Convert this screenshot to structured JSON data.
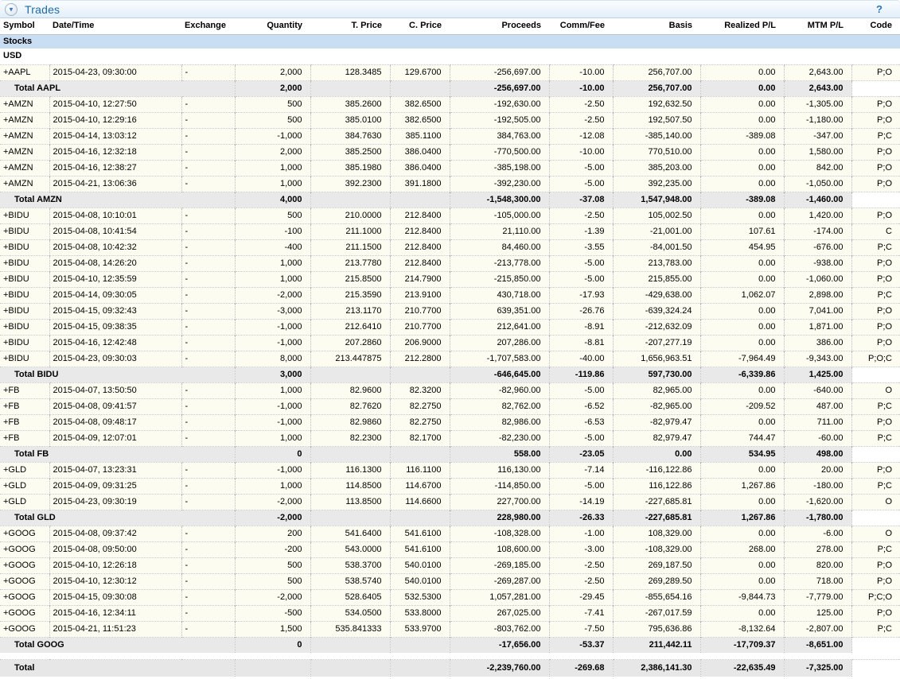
{
  "header": {
    "title": "Trades",
    "help_label": "?",
    "collapse_glyph": "▼"
  },
  "colors": {
    "title_text": "#1c6ca6",
    "section_bg": "#c9ddf3",
    "trade_row_bg": "#fdfcf0",
    "total_row_bg": "#e9e9e9"
  },
  "columns": [
    {
      "key": "symbol",
      "label": "Symbol",
      "align": "left"
    },
    {
      "key": "datetime",
      "label": "Date/Time",
      "align": "left"
    },
    {
      "key": "exchange",
      "label": "Exchange",
      "align": "left"
    },
    {
      "key": "quantity",
      "label": "Quantity",
      "align": "right"
    },
    {
      "key": "tprice",
      "label": "T. Price",
      "align": "right"
    },
    {
      "key": "cprice",
      "label": "C. Price",
      "align": "right"
    },
    {
      "key": "proceeds",
      "label": "Proceeds",
      "align": "right"
    },
    {
      "key": "comm",
      "label": "Comm/Fee",
      "align": "right"
    },
    {
      "key": "basis",
      "label": "Basis",
      "align": "right"
    },
    {
      "key": "realized",
      "label": "Realized P/L",
      "align": "right"
    },
    {
      "key": "mtm",
      "label": "MTM P/L",
      "align": "right"
    },
    {
      "key": "code",
      "label": "Code",
      "align": "right"
    }
  ],
  "rows": [
    {
      "type": "section",
      "label": "Stocks"
    },
    {
      "type": "currency",
      "label": "USD"
    },
    {
      "type": "trade",
      "cells": [
        "+AAPL",
        "2015-04-23, 09:30:00",
        "-",
        "2,000",
        "128.3485",
        "129.6700",
        "-256,697.00",
        "-10.00",
        "256,707.00",
        "0.00",
        "2,643.00",
        "P;O"
      ]
    },
    {
      "type": "total",
      "label": "Total AAPL",
      "quantity": "2,000",
      "proceeds": "-256,697.00",
      "comm": "-10.00",
      "basis": "256,707.00",
      "realized": "0.00",
      "mtm": "2,643.00"
    },
    {
      "type": "trade",
      "cells": [
        "+AMZN",
        "2015-04-10, 12:27:50",
        "-",
        "500",
        "385.2600",
        "382.6500",
        "-192,630.00",
        "-2.50",
        "192,632.50",
        "0.00",
        "-1,305.00",
        "P;O"
      ]
    },
    {
      "type": "trade",
      "cells": [
        "+AMZN",
        "2015-04-10, 12:29:16",
        "-",
        "500",
        "385.0100",
        "382.6500",
        "-192,505.00",
        "-2.50",
        "192,507.50",
        "0.00",
        "-1,180.00",
        "P;O"
      ]
    },
    {
      "type": "trade",
      "cells": [
        "+AMZN",
        "2015-04-14, 13:03:12",
        "-",
        "-1,000",
        "384.7630",
        "385.1100",
        "384,763.00",
        "-12.08",
        "-385,140.00",
        "-389.08",
        "-347.00",
        "P;C"
      ]
    },
    {
      "type": "trade",
      "cells": [
        "+AMZN",
        "2015-04-16, 12:32:18",
        "-",
        "2,000",
        "385.2500",
        "386.0400",
        "-770,500.00",
        "-10.00",
        "770,510.00",
        "0.00",
        "1,580.00",
        "P;O"
      ]
    },
    {
      "type": "trade",
      "cells": [
        "+AMZN",
        "2015-04-16, 12:38:27",
        "-",
        "1,000",
        "385.1980",
        "386.0400",
        "-385,198.00",
        "-5.00",
        "385,203.00",
        "0.00",
        "842.00",
        "P;O"
      ]
    },
    {
      "type": "trade",
      "cells": [
        "+AMZN",
        "2015-04-21, 13:06:36",
        "-",
        "1,000",
        "392.2300",
        "391.1800",
        "-392,230.00",
        "-5.00",
        "392,235.00",
        "0.00",
        "-1,050.00",
        "P;O"
      ]
    },
    {
      "type": "total",
      "label": "Total AMZN",
      "quantity": "4,000",
      "proceeds": "-1,548,300.00",
      "comm": "-37.08",
      "basis": "1,547,948.00",
      "realized": "-389.08",
      "mtm": "-1,460.00"
    },
    {
      "type": "trade",
      "cells": [
        "+BIDU",
        "2015-04-08, 10:10:01",
        "-",
        "500",
        "210.0000",
        "212.8400",
        "-105,000.00",
        "-2.50",
        "105,002.50",
        "0.00",
        "1,420.00",
        "P;O"
      ]
    },
    {
      "type": "trade",
      "cells": [
        "+BIDU",
        "2015-04-08, 10:41:54",
        "-",
        "-100",
        "211.1000",
        "212.8400",
        "21,110.00",
        "-1.39",
        "-21,001.00",
        "107.61",
        "-174.00",
        "C"
      ]
    },
    {
      "type": "trade",
      "cells": [
        "+BIDU",
        "2015-04-08, 10:42:32",
        "-",
        "-400",
        "211.1500",
        "212.8400",
        "84,460.00",
        "-3.55",
        "-84,001.50",
        "454.95",
        "-676.00",
        "P;C"
      ]
    },
    {
      "type": "trade",
      "cells": [
        "+BIDU",
        "2015-04-08, 14:26:20",
        "-",
        "1,000",
        "213.7780",
        "212.8400",
        "-213,778.00",
        "-5.00",
        "213,783.00",
        "0.00",
        "-938.00",
        "P;O"
      ]
    },
    {
      "type": "trade",
      "cells": [
        "+BIDU",
        "2015-04-10, 12:35:59",
        "-",
        "1,000",
        "215.8500",
        "214.7900",
        "-215,850.00",
        "-5.00",
        "215,855.00",
        "0.00",
        "-1,060.00",
        "P;O"
      ]
    },
    {
      "type": "trade",
      "cells": [
        "+BIDU",
        "2015-04-14, 09:30:05",
        "-",
        "-2,000",
        "215.3590",
        "213.9100",
        "430,718.00",
        "-17.93",
        "-429,638.00",
        "1,062.07",
        "2,898.00",
        "P;C"
      ]
    },
    {
      "type": "trade",
      "cells": [
        "+BIDU",
        "2015-04-15, 09:32:43",
        "-",
        "-3,000",
        "213.1170",
        "210.7700",
        "639,351.00",
        "-26.76",
        "-639,324.24",
        "0.00",
        "7,041.00",
        "P;O"
      ]
    },
    {
      "type": "trade",
      "cells": [
        "+BIDU",
        "2015-04-15, 09:38:35",
        "-",
        "-1,000",
        "212.6410",
        "210.7700",
        "212,641.00",
        "-8.91",
        "-212,632.09",
        "0.00",
        "1,871.00",
        "P;O"
      ]
    },
    {
      "type": "trade",
      "cells": [
        "+BIDU",
        "2015-04-16, 12:42:48",
        "-",
        "-1,000",
        "207.2860",
        "206.9000",
        "207,286.00",
        "-8.81",
        "-207,277.19",
        "0.00",
        "386.00",
        "P;O"
      ]
    },
    {
      "type": "trade",
      "cells": [
        "+BIDU",
        "2015-04-23, 09:30:03",
        "-",
        "8,000",
        "213.447875",
        "212.2800",
        "-1,707,583.00",
        "-40.00",
        "1,656,963.51",
        "-7,964.49",
        "-9,343.00",
        "P;O;C"
      ]
    },
    {
      "type": "total",
      "label": "Total BIDU",
      "quantity": "3,000",
      "proceeds": "-646,645.00",
      "comm": "-119.86",
      "basis": "597,730.00",
      "realized": "-6,339.86",
      "mtm": "1,425.00"
    },
    {
      "type": "trade",
      "cells": [
        "+FB",
        "2015-04-07, 13:50:50",
        "-",
        "1,000",
        "82.9600",
        "82.3200",
        "-82,960.00",
        "-5.00",
        "82,965.00",
        "0.00",
        "-640.00",
        "O"
      ]
    },
    {
      "type": "trade",
      "cells": [
        "+FB",
        "2015-04-08, 09:41:57",
        "-",
        "-1,000",
        "82.7620",
        "82.2750",
        "82,762.00",
        "-6.52",
        "-82,965.00",
        "-209.52",
        "487.00",
        "P;C"
      ]
    },
    {
      "type": "trade",
      "cells": [
        "+FB",
        "2015-04-08, 09:48:17",
        "-",
        "-1,000",
        "82.9860",
        "82.2750",
        "82,986.00",
        "-6.53",
        "-82,979.47",
        "0.00",
        "711.00",
        "P;O"
      ]
    },
    {
      "type": "trade",
      "cells": [
        "+FB",
        "2015-04-09, 12:07:01",
        "-",
        "1,000",
        "82.2300",
        "82.1700",
        "-82,230.00",
        "-5.00",
        "82,979.47",
        "744.47",
        "-60.00",
        "P;C"
      ]
    },
    {
      "type": "total",
      "label": "Total FB",
      "quantity": "0",
      "proceeds": "558.00",
      "comm": "-23.05",
      "basis": "0.00",
      "realized": "534.95",
      "mtm": "498.00"
    },
    {
      "type": "trade",
      "cells": [
        "+GLD",
        "2015-04-07, 13:23:31",
        "-",
        "-1,000",
        "116.1300",
        "116.1100",
        "116,130.00",
        "-7.14",
        "-116,122.86",
        "0.00",
        "20.00",
        "P;O"
      ]
    },
    {
      "type": "trade",
      "cells": [
        "+GLD",
        "2015-04-09, 09:31:25",
        "-",
        "1,000",
        "114.8500",
        "114.6700",
        "-114,850.00",
        "-5.00",
        "116,122.86",
        "1,267.86",
        "-180.00",
        "P;C"
      ]
    },
    {
      "type": "trade",
      "cells": [
        "+GLD",
        "2015-04-23, 09:30:19",
        "-",
        "-2,000",
        "113.8500",
        "114.6600",
        "227,700.00",
        "-14.19",
        "-227,685.81",
        "0.00",
        "-1,620.00",
        "O"
      ]
    },
    {
      "type": "total",
      "label": "Total GLD",
      "quantity": "-2,000",
      "proceeds": "228,980.00",
      "comm": "-26.33",
      "basis": "-227,685.81",
      "realized": "1,267.86",
      "mtm": "-1,780.00"
    },
    {
      "type": "trade",
      "cells": [
        "+GOOG",
        "2015-04-08, 09:37:42",
        "-",
        "200",
        "541.6400",
        "541.6100",
        "-108,328.00",
        "-1.00",
        "108,329.00",
        "0.00",
        "-6.00",
        "O"
      ]
    },
    {
      "type": "trade",
      "cells": [
        "+GOOG",
        "2015-04-08, 09:50:00",
        "-",
        "-200",
        "543.0000",
        "541.6100",
        "108,600.00",
        "-3.00",
        "-108,329.00",
        "268.00",
        "278.00",
        "P;C"
      ]
    },
    {
      "type": "trade",
      "cells": [
        "+GOOG",
        "2015-04-10, 12:26:18",
        "-",
        "500",
        "538.3700",
        "540.0100",
        "-269,185.00",
        "-2.50",
        "269,187.50",
        "0.00",
        "820.00",
        "P;O"
      ]
    },
    {
      "type": "trade",
      "cells": [
        "+GOOG",
        "2015-04-10, 12:30:12",
        "-",
        "500",
        "538.5740",
        "540.0100",
        "-269,287.00",
        "-2.50",
        "269,289.50",
        "0.00",
        "718.00",
        "P;O"
      ]
    },
    {
      "type": "trade",
      "cells": [
        "+GOOG",
        "2015-04-15, 09:30:08",
        "-",
        "-2,000",
        "528.6405",
        "532.5300",
        "1,057,281.00",
        "-29.45",
        "-855,654.16",
        "-9,844.73",
        "-7,779.00",
        "P;C;O"
      ]
    },
    {
      "type": "trade",
      "cells": [
        "+GOOG",
        "2015-04-16, 12:34:11",
        "-",
        "-500",
        "534.0500",
        "533.8000",
        "267,025.00",
        "-7.41",
        "-267,017.59",
        "0.00",
        "125.00",
        "P;O"
      ]
    },
    {
      "type": "trade",
      "cells": [
        "+GOOG",
        "2015-04-21, 11:51:23",
        "-",
        "1,500",
        "535.841333",
        "533.9700",
        "-803,762.00",
        "-7.50",
        "795,636.86",
        "-8,132.64",
        "-2,807.00",
        "P;C"
      ]
    },
    {
      "type": "total",
      "label": "Total GOOG",
      "quantity": "0",
      "proceeds": "-17,656.00",
      "comm": "-53.37",
      "basis": "211,442.11",
      "realized": "-17,709.37",
      "mtm": "-8,651.00"
    },
    {
      "type": "spacer"
    },
    {
      "type": "grandtotal",
      "label": "Total",
      "quantity": "",
      "proceeds": "-2,239,760.00",
      "comm": "-269.68",
      "basis": "2,386,141.30",
      "realized": "-22,635.49",
      "mtm": "-7,325.00"
    }
  ]
}
